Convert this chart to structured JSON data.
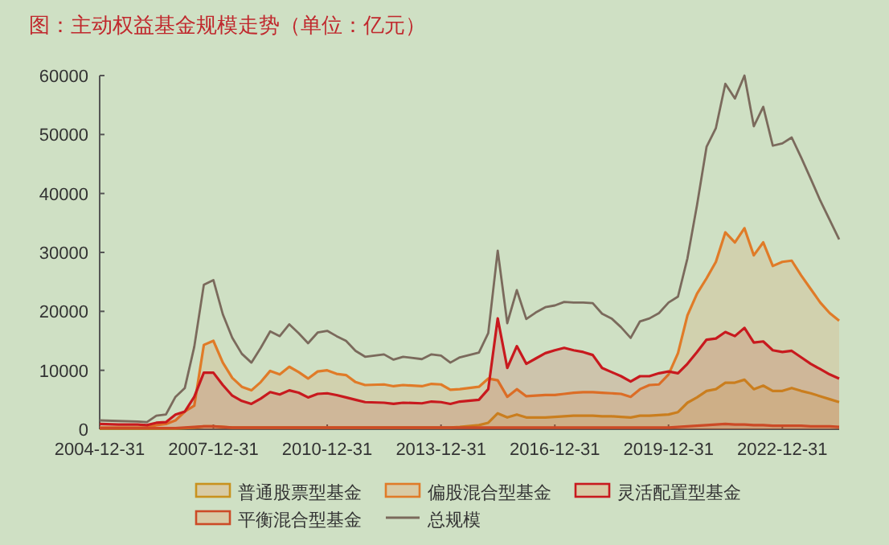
{
  "chart_data": {
    "type": "area",
    "title": "图：主动权益基金规模走势（单位：亿元）",
    "x": [
      "2004-12-31",
      "2005-06-30",
      "2005-12-31",
      "2006-03-31",
      "2006-06-30",
      "2006-09-30",
      "2006-12-31",
      "2007-03-31",
      "2007-06-30",
      "2007-09-30",
      "2007-12-31",
      "2008-03-31",
      "2008-06-30",
      "2008-09-30",
      "2008-12-31",
      "2009-03-31",
      "2009-06-30",
      "2009-09-30",
      "2009-12-31",
      "2010-03-31",
      "2010-06-30",
      "2010-09-30",
      "2010-12-31",
      "2011-03-31",
      "2011-06-30",
      "2011-09-30",
      "2011-12-31",
      "2012-06-30",
      "2012-09-30",
      "2012-12-31",
      "2013-06-30",
      "2013-09-30",
      "2013-12-31",
      "2014-03-31",
      "2014-06-30",
      "2014-12-31",
      "2015-03-31",
      "2015-06-30",
      "2015-09-30",
      "2015-12-31",
      "2016-03-31",
      "2016-06-30",
      "2016-09-30",
      "2016-12-31",
      "2017-03-31",
      "2017-06-30",
      "2017-09-30",
      "2017-12-31",
      "2018-03-31",
      "2018-06-30",
      "2018-09-30",
      "2018-12-31",
      "2019-03-31",
      "2019-06-30",
      "2019-09-30",
      "2019-12-31",
      "2020-03-31",
      "2020-06-30",
      "2020-09-30",
      "2020-12-31",
      "2021-03-31",
      "2021-06-30",
      "2021-09-30",
      "2021-12-31",
      "2022-03-31",
      "2022-06-30",
      "2022-09-30",
      "2022-12-31",
      "2023-03-31",
      "2023-06-30",
      "2023-09-30",
      "2023-12-31",
      "2024-03-31",
      "2024-06-30"
    ],
    "series": [
      {
        "name": "普通股票型基金",
        "color": "#c8921e",
        "values": [
          100,
          100,
          100,
          100,
          100,
          100,
          100,
          200,
          300,
          500,
          500,
          400,
          300,
          300,
          300,
          300,
          300,
          300,
          300,
          300,
          300,
          300,
          300,
          300,
          300,
          300,
          300,
          300,
          300,
          300,
          300,
          300,
          300,
          300,
          400,
          700,
          1100,
          2700,
          2000,
          2500,
          2000,
          2000,
          2000,
          2100,
          2200,
          2300,
          2300,
          2300,
          2200,
          2200,
          2100,
          2000,
          2300,
          2300,
          2400,
          2500,
          2900,
          4500,
          5400,
          6500,
          6800,
          7900,
          7900,
          8400,
          6800,
          7400,
          6500,
          6500,
          7000,
          6500,
          6100,
          5600,
          5100,
          4600
        ]
      },
      {
        "name": "偏股混合型基金",
        "color": "#e07b28",
        "values": [
          300,
          300,
          300,
          300,
          700,
          900,
          1500,
          3000,
          4000,
          14300,
          15000,
          11300,
          8700,
          7200,
          6600,
          8000,
          9900,
          9300,
          10600,
          9700,
          8600,
          9800,
          10000,
          9400,
          9200,
          8000,
          7500,
          7600,
          7300,
          7500,
          7300,
          7700,
          7600,
          6700,
          6800,
          7200,
          8600,
          8300,
          5500,
          6800,
          5600,
          5700,
          5800,
          5800,
          6000,
          6200,
          6300,
          6300,
          6200,
          6100,
          6000,
          5500,
          6800,
          7500,
          7600,
          9300,
          12900,
          19300,
          23000,
          25600,
          28400,
          33400,
          31700,
          34100,
          29500,
          31700,
          27700,
          28400,
          28600,
          26100,
          23800,
          21500,
          19700,
          18400
        ]
      },
      {
        "name": "灵活配置型基金",
        "color": "#c8191e",
        "values": [
          900,
          800,
          800,
          700,
          1100,
          1200,
          2500,
          3000,
          5500,
          9600,
          9600,
          7500,
          5700,
          4800,
          4300,
          5200,
          6300,
          5900,
          6600,
          6200,
          5400,
          6000,
          6100,
          5800,
          5400,
          5000,
          4600,
          4500,
          4300,
          4500,
          4400,
          4700,
          4600,
          4300,
          4700,
          5000,
          6800,
          18800,
          10400,
          14100,
          11100,
          12000,
          12900,
          13400,
          13800,
          13400,
          13100,
          12600,
          10400,
          9700,
          9000,
          8100,
          9000,
          9000,
          9500,
          9800,
          9500,
          11100,
          13100,
          15200,
          15400,
          16500,
          15800,
          17200,
          14700,
          14900,
          13400,
          13100,
          13300,
          12200,
          11100,
          10200,
          9300,
          8600
        ]
      },
      {
        "name": "平衡混合型基金",
        "color": "#cc4a26",
        "values": [
          200,
          200,
          200,
          200,
          200,
          200,
          200,
          300,
          400,
          500,
          500,
          400,
          300,
          300,
          300,
          300,
          300,
          300,
          300,
          300,
          300,
          300,
          300,
          300,
          300,
          300,
          300,
          300,
          300,
          300,
          300,
          300,
          300,
          300,
          300,
          300,
          300,
          300,
          300,
          300,
          300,
          300,
          300,
          300,
          300,
          300,
          300,
          300,
          300,
          300,
          300,
          300,
          300,
          300,
          300,
          300,
          400,
          500,
          600,
          700,
          800,
          900,
          800,
          800,
          700,
          700,
          600,
          600,
          600,
          600,
          500,
          500,
          500,
          400
        ]
      },
      {
        "name": "总规模",
        "type": "line",
        "color": "#7b6a5c",
        "values": [
          1500,
          1400,
          1300,
          1200,
          2300,
          2500,
          5500,
          7000,
          14000,
          24500,
          25300,
          19500,
          15500,
          12800,
          11300,
          13800,
          16600,
          15800,
          17800,
          16300,
          14600,
          16400,
          16700,
          15800,
          15000,
          13300,
          12300,
          12700,
          11800,
          12300,
          11900,
          12700,
          12500,
          11300,
          12200,
          13000,
          16300,
          30300,
          18000,
          23600,
          18700,
          19800,
          20700,
          21000,
          21600,
          21500,
          21500,
          21400,
          19600,
          18800,
          17300,
          15500,
          18300,
          18800,
          19700,
          21500,
          22500,
          29000,
          38000,
          47900,
          51100,
          58600,
          56100,
          60000,
          51400,
          54700,
          48100,
          48500,
          49500,
          46100,
          42500,
          38800,
          35500,
          32200
        ]
      }
    ],
    "xlim": [
      "2004-12-31",
      "2024-06-30"
    ],
    "xticks": [
      "2004-12-31",
      "2007-12-31",
      "2010-12-31",
      "2013-12-31",
      "2016-12-31",
      "2019-12-31",
      "2022-12-31"
    ],
    "ylim": [
      0,
      60000
    ],
    "yticks": [
      0,
      10000,
      20000,
      30000,
      40000,
      50000,
      60000
    ],
    "legend": "bottom"
  }
}
